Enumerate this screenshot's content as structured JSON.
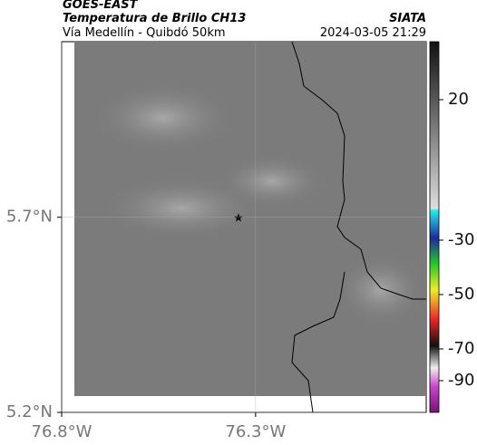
{
  "header": {
    "source": "GOES-EAST",
    "title": "Temperatura de Brillo CH13",
    "brand": "SIATA",
    "subtitle": "Vía Medellín - Quibdó 50km",
    "datetime": "2024-03-05 21:29"
  },
  "map": {
    "lonlim": [
      -76.8,
      -75.86
    ],
    "latlim": [
      5.2,
      6.15
    ],
    "lonticks": [
      {
        "value": -76.8,
        "label": "76.8°W"
      },
      {
        "value": -76.3,
        "label": "76.3°W"
      }
    ],
    "latticks": [
      {
        "value": 5.7,
        "label": "5.7°N"
      },
      {
        "value": 5.2,
        "label": "5.2°N"
      }
    ]
  },
  "colorbar": {
    "ticks": [
      20,
      -30,
      -50,
      -70,
      -90
    ]
  }
}
